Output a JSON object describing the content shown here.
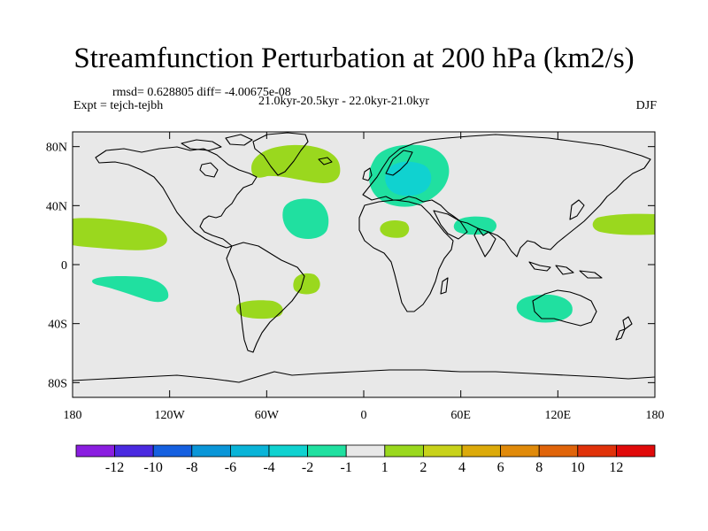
{
  "title": "Streamfunction Perturbation at 200 hPa (km2/s)",
  "stats": "rmsd= 0.628805 diff= -4.00675e-08",
  "period": "21.0kyr-20.5kyr - 22.0kyr-21.0kyr",
  "experiment": "Expt = tejch-tejbh",
  "season": "DJF",
  "lon_ticks": [
    "180",
    "120W",
    "60W",
    "0",
    "60E",
    "120E",
    "180"
  ],
  "lat_ticks": [
    "80N",
    "40N",
    "0",
    "40S",
    "80S"
  ],
  "colorbar": {
    "labels": [
      "-12",
      "-10",
      "-8",
      "-6",
      "-4",
      "-2",
      "-1",
      "1",
      "2",
      "4",
      "6",
      "8",
      "10",
      "12"
    ],
    "colors": [
      "#8a1ee0",
      "#4a2ae0",
      "#1560e0",
      "#0a96d8",
      "#0ab4d8",
      "#10d2d0",
      "#20e0a0",
      "#e8e8e8",
      "#9ad81e",
      "#c8d21a",
      "#dcaa0a",
      "#e08a0a",
      "#e0640a",
      "#e0320a",
      "#e00a0a"
    ]
  },
  "anomaly_regions": [
    {
      "name": "north-atlantic-positive",
      "level": "1 to 2",
      "color": "#9ad81e"
    },
    {
      "name": "europe-negative",
      "level": "-1 to -2",
      "color": "#20e0a0"
    },
    {
      "name": "europe-negative-core",
      "level": "-2 to -4",
      "color": "#10d2d0"
    },
    {
      "name": "atlantic-negative",
      "level": "-1 to -2",
      "color": "#20e0a0"
    },
    {
      "name": "east-pacific-positive",
      "level": "1 to 2",
      "color": "#9ad81e"
    },
    {
      "name": "west-pacific-positive",
      "level": "1 to 2",
      "color": "#9ad81e"
    },
    {
      "name": "south-pacific-negative",
      "level": "-1 to -2",
      "color": "#20e0a0"
    },
    {
      "name": "south-atlantic-positive",
      "level": "1 to 2",
      "color": "#9ad81e"
    },
    {
      "name": "south-america-positive",
      "level": "1 to 2",
      "color": "#9ad81e"
    },
    {
      "name": "north-africa-positive",
      "level": "1 to 2",
      "color": "#9ad81e"
    },
    {
      "name": "arabia-negative",
      "level": "-1 to -2",
      "color": "#20e0a0"
    },
    {
      "name": "australia-negative",
      "level": "-1 to -2",
      "color": "#20e0a0"
    }
  ]
}
